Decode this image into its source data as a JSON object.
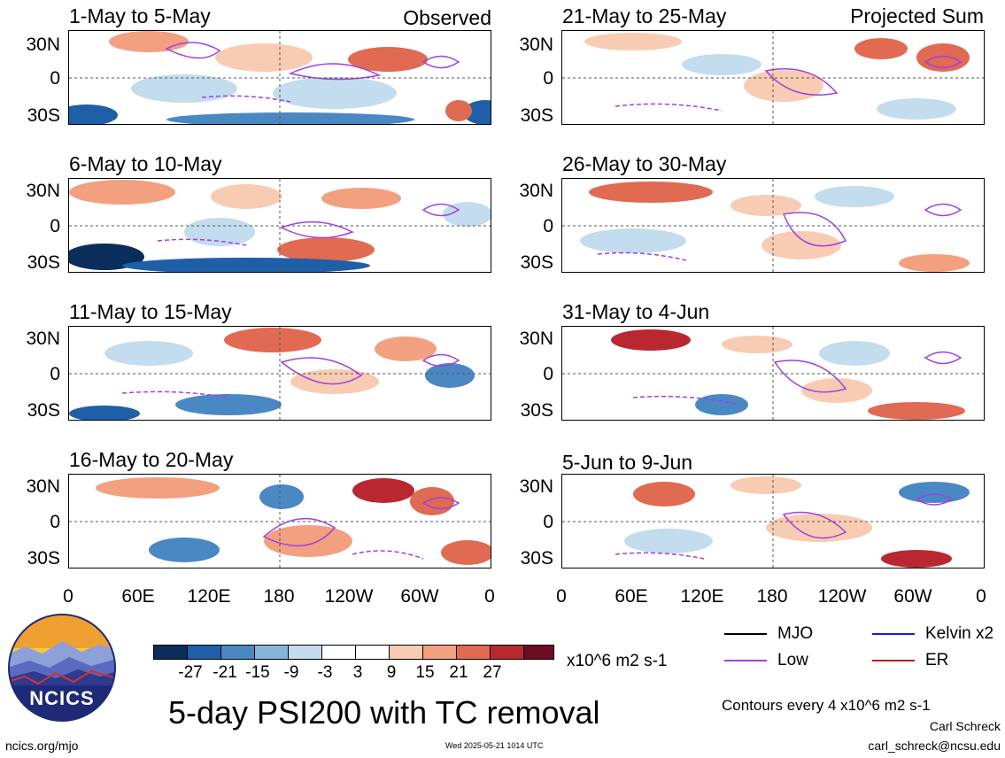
{
  "panels": [
    {
      "title": "1-May to 5-May",
      "tag": "Observed"
    },
    {
      "title": "6-May to 10-May",
      "tag": ""
    },
    {
      "title": "11-May to 15-May",
      "tag": ""
    },
    {
      "title": "16-May to 20-May",
      "tag": ""
    },
    {
      "title": "21-May to 25-May",
      "tag": "Projected Sum"
    },
    {
      "title": "26-May to 30-May",
      "tag": ""
    },
    {
      "title": "31-May to 4-Jun",
      "tag": ""
    },
    {
      "title": "5-Jun to 9-Jun",
      "tag": ""
    }
  ],
  "lat_labels": [
    "30N",
    "0",
    "30S"
  ],
  "lon_labels": [
    "0",
    "60E",
    "120E",
    "180",
    "120W",
    "60W",
    "0"
  ],
  "colorbar": {
    "colors": [
      "#0b2d5c",
      "#1f5fa8",
      "#4a88c4",
      "#86b5da",
      "#c3dcee",
      "#ffffff",
      "#ffffff",
      "#f8ccb3",
      "#f2a080",
      "#e06a52",
      "#b92830",
      "#6b0a20"
    ],
    "labels": [
      "-27",
      "-21",
      "-15",
      "-9",
      "-3",
      "3",
      "9",
      "15",
      "21",
      "27"
    ],
    "unit": "x10^6 m2 s-1"
  },
  "legend": [
    {
      "label": "MJO",
      "color": "#000000"
    },
    {
      "label": "Kelvin x2",
      "color": "#1a1adc"
    },
    {
      "label": "Low",
      "color": "#a040e0"
    },
    {
      "label": "ER",
      "color": "#c01818"
    }
  ],
  "main_title": "5-day PSI200 with TC removal",
  "contour_note": "Contours every 4 x10^6 m2 s-1",
  "author": "Carl Schreck",
  "email": "carl_schreck@ncsu.edu",
  "site": "ncics.org/mjo",
  "timestamp": "Wed 2025-05-21 1014 UTC",
  "logo_text": "NCICS"
}
